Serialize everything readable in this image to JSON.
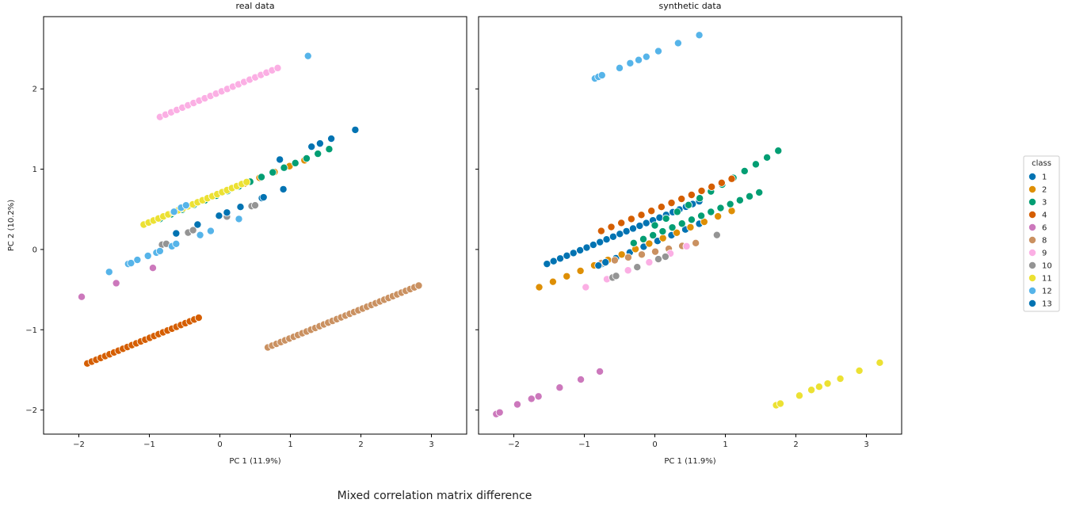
{
  "caption": "Mixed correlation matrix difference",
  "chart_data": [
    {
      "type": "scatter",
      "title": "real data",
      "xlabel": "PC 1 (11.9%)",
      "ylabel": "PC 2 (10.2%)",
      "xlim": [
        -2.5,
        3.5
      ],
      "ylim": [
        -2.3,
        2.9
      ],
      "xticks": [
        -2,
        -1,
        0,
        1,
        2,
        3
      ],
      "yticks": [
        -2,
        -1,
        0,
        1,
        2
      ],
      "xtick_labels": [
        "−2",
        "−1",
        "0",
        "1",
        "2",
        "3"
      ],
      "ytick_labels": [
        "−2",
        "−1",
        "0",
        "1",
        "2"
      ],
      "grid": false,
      "series": [
        {
          "name": "1",
          "segments": [
            {
              "from": [
                -0.62,
                0.2
              ],
              "to": [
                0.9,
                0.75
              ],
              "n": 6
            }
          ]
        },
        {
          "name": "2",
          "segments": [
            {
              "from": [
                0.35,
                0.82
              ],
              "to": [
                1.2,
                1.11
              ],
              "n": 5
            }
          ]
        },
        {
          "name": "3",
          "segments": [
            {
              "from": [
                -0.85,
                0.38
              ],
              "to": [
                1.55,
                1.25
              ],
              "n": 16
            }
          ]
        },
        {
          "name": "4",
          "segments": [
            {
              "from": [
                -1.88,
                -1.42
              ],
              "to": [
                -0.3,
                -0.85
              ],
              "n": 26
            }
          ]
        },
        {
          "name": "6",
          "points": [
            [
              -1.96,
              -0.59
            ],
            [
              -1.47,
              -0.42
            ],
            [
              -0.95,
              -0.23
            ]
          ]
        },
        {
          "name": "8",
          "segments": [
            {
              "from": [
                0.68,
                -1.22
              ],
              "to": [
                2.82,
                -0.45
              ],
              "n": 36
            }
          ]
        },
        {
          "name": "9",
          "segments": [
            {
              "from": [
                -0.85,
                1.65
              ],
              "to": [
                0.82,
                2.26
              ],
              "n": 22
            }
          ]
        },
        {
          "name": "10",
          "points": [
            [
              -0.82,
              0.06
            ],
            [
              -0.76,
              0.07
            ],
            [
              -0.45,
              0.21
            ],
            [
              -0.38,
              0.24
            ],
            [
              0.1,
              0.41
            ],
            [
              0.45,
              0.54
            ],
            [
              0.5,
              0.55
            ]
          ]
        },
        {
          "name": "11",
          "segments": [
            {
              "from": [
                -1.08,
                0.31
              ],
              "to": [
                0.38,
                0.84
              ],
              "n": 22
            }
          ]
        },
        {
          "name": "12",
          "points": [
            [
              -1.57,
              -0.28
            ],
            [
              -1.3,
              -0.18
            ],
            [
              -1.26,
              -0.17
            ],
            [
              -1.17,
              -0.13
            ],
            [
              -1.02,
              -0.08
            ],
            [
              -0.9,
              -0.04
            ],
            [
              -0.85,
              -0.02
            ],
            [
              -0.68,
              0.04
            ],
            [
              -0.62,
              0.07
            ],
            [
              -0.28,
              0.18
            ],
            [
              -0.13,
              0.23
            ],
            [
              -0.65,
              0.47
            ],
            [
              -0.55,
              0.52
            ],
            [
              -0.48,
              0.55
            ],
            [
              0.27,
              0.38
            ],
            [
              1.25,
              2.41
            ]
          ]
        },
        {
          "name": "13",
          "points": [
            [
              0.1,
              0.46
            ],
            [
              0.62,
              0.65
            ],
            [
              0.85,
              1.12
            ],
            [
              1.3,
              1.28
            ],
            [
              1.42,
              1.32
            ],
            [
              1.58,
              1.38
            ],
            [
              1.92,
              1.49
            ]
          ]
        }
      ]
    },
    {
      "type": "scatter",
      "title": "synthetic data",
      "xlabel": "PC 1 (11.9%)",
      "ylabel": "",
      "xlim": [
        -2.5,
        3.5
      ],
      "ylim": [
        -2.3,
        2.9
      ],
      "xticks": [
        -2,
        -1,
        0,
        1,
        2,
        3
      ],
      "yticks": [
        -2,
        -1,
        0,
        1,
        2
      ],
      "xtick_labels": [
        "−2",
        "−1",
        "0",
        "1",
        "2",
        "3"
      ],
      "ytick_labels": [],
      "grid": false,
      "series": [
        {
          "name": "1",
          "segments": [
            {
              "from": [
                -1.53,
                -0.18
              ],
              "to": [
                0.63,
                0.6
              ],
              "n": 24
            },
            {
              "from": [
                -0.75,
                -0.18
              ],
              "to": [
                0.63,
                0.32
              ],
              "n": 8
            }
          ]
        },
        {
          "name": "2",
          "segments": [
            {
              "from": [
                -1.64,
                -0.47
              ],
              "to": [
                1.09,
                0.48
              ],
              "n": 15
            }
          ]
        },
        {
          "name": "3",
          "segments": [
            {
              "from": [
                -0.3,
                0.08
              ],
              "to": [
                1.48,
                0.71
              ],
              "n": 14
            },
            {
              "from": [
                0.0,
                0.3
              ],
              "to": [
                1.75,
                1.23
              ],
              "n": 12
            }
          ]
        },
        {
          "name": "4",
          "segments": [
            {
              "from": [
                -0.76,
                0.23
              ],
              "to": [
                1.09,
                0.88
              ],
              "n": 14
            }
          ]
        },
        {
          "name": "6",
          "points": [
            [
              -2.25,
              -2.05
            ],
            [
              -2.2,
              -2.03
            ],
            [
              -1.95,
              -1.93
            ],
            [
              -1.75,
              -1.86
            ],
            [
              -1.65,
              -1.83
            ],
            [
              -1.35,
              -1.72
            ],
            [
              -1.05,
              -1.62
            ],
            [
              -0.78,
              -1.52
            ]
          ]
        },
        {
          "name": "8",
          "segments": [
            {
              "from": [
                -0.76,
                -0.17
              ],
              "to": [
                0.58,
                0.08
              ],
              "n": 8
            }
          ]
        },
        {
          "name": "9",
          "points": [
            [
              -0.98,
              -0.47
            ],
            [
              -0.68,
              -0.37
            ],
            [
              -0.38,
              -0.26
            ],
            [
              -0.08,
              -0.16
            ],
            [
              0.22,
              -0.05
            ],
            [
              0.45,
              0.04
            ]
          ]
        },
        {
          "name": "10",
          "points": [
            [
              -0.6,
              -0.35
            ],
            [
              -0.55,
              -0.33
            ],
            [
              -0.25,
              -0.22
            ],
            [
              0.05,
              -0.12
            ],
            [
              0.15,
              -0.09
            ],
            [
              0.88,
              0.18
            ]
          ]
        },
        {
          "name": "11",
          "points": [
            [
              1.72,
              -1.94
            ],
            [
              1.78,
              -1.92
            ],
            [
              2.05,
              -1.82
            ],
            [
              2.22,
              -1.75
            ],
            [
              2.33,
              -1.71
            ],
            [
              2.45,
              -1.67
            ],
            [
              2.63,
              -1.61
            ],
            [
              2.9,
              -1.51
            ],
            [
              3.19,
              -1.41
            ]
          ]
        },
        {
          "name": "12",
          "points": [
            [
              -0.85,
              2.13
            ],
            [
              -0.8,
              2.15
            ],
            [
              -0.75,
              2.17
            ],
            [
              -0.5,
              2.26
            ],
            [
              -0.35,
              2.32
            ],
            [
              -0.23,
              2.36
            ],
            [
              -0.12,
              2.4
            ],
            [
              0.05,
              2.47
            ],
            [
              0.33,
              2.57
            ],
            [
              0.63,
              2.67
            ]
          ]
        },
        {
          "name": "13",
          "points": [
            [
              -0.8,
              -0.2
            ],
            [
              -0.7,
              -0.16
            ]
          ]
        }
      ]
    }
  ],
  "legend": {
    "title": "class",
    "placement": "right",
    "entries": [
      {
        "label": "1",
        "color": "#0173b2"
      },
      {
        "label": "2",
        "color": "#de8f05"
      },
      {
        "label": "3",
        "color": "#029e73"
      },
      {
        "label": "4",
        "color": "#d55e00"
      },
      {
        "label": "6",
        "color": "#cc78bc"
      },
      {
        "label": "8",
        "color": "#ca9161"
      },
      {
        "label": "9",
        "color": "#fbafe4"
      },
      {
        "label": "10",
        "color": "#949494"
      },
      {
        "label": "11",
        "color": "#ece133"
      },
      {
        "label": "12",
        "color": "#56b4e9"
      },
      {
        "label": "13",
        "color": "#0173b2"
      }
    ]
  }
}
